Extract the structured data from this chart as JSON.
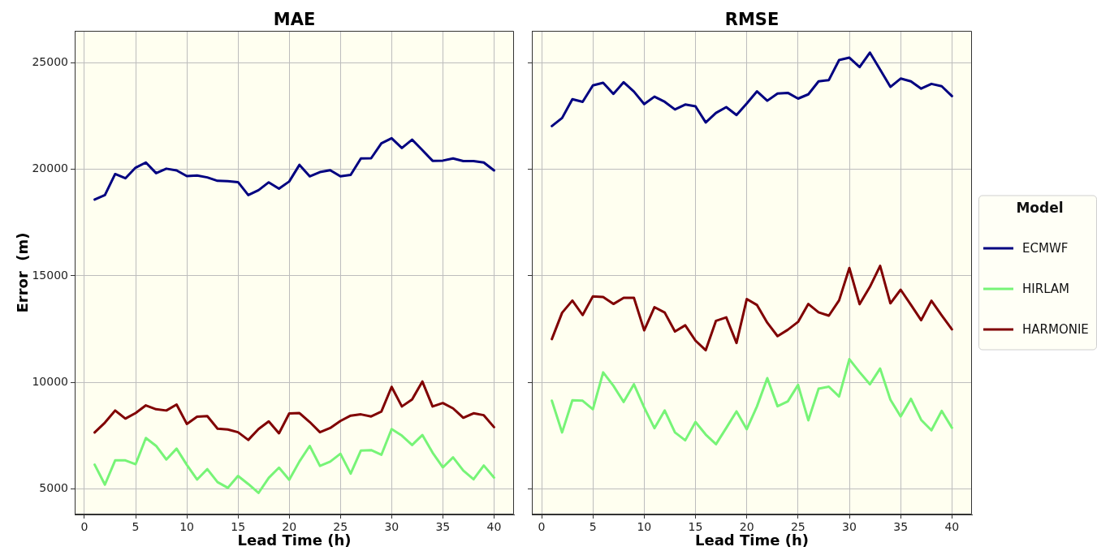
{
  "chart_data": [
    {
      "type": "line",
      "title": "MAE",
      "xlabel": "Lead Time (h)",
      "ylabel": "Error  (m)",
      "x": [
        1,
        2,
        3,
        4,
        5,
        6,
        7,
        8,
        9,
        10,
        11,
        12,
        13,
        14,
        15,
        16,
        17,
        18,
        19,
        20,
        21,
        22,
        23,
        24,
        25,
        26,
        27,
        28,
        29,
        30,
        31,
        32,
        33,
        34,
        35,
        36,
        37,
        38,
        39,
        40
      ],
      "series": [
        {
          "color": "#000080",
          "values": [
            18580,
            18790,
            19780,
            19580,
            20080,
            20320,
            19820,
            20030,
            19950,
            19680,
            19710,
            19620,
            19460,
            19440,
            19400,
            18790,
            19020,
            19390,
            19090,
            19430,
            20210,
            19670,
            19870,
            19960,
            19670,
            19740,
            20510,
            20520,
            21220,
            21460,
            21000,
            21390,
            20900,
            20400,
            20410,
            20510,
            20390,
            20390,
            20320,
            19950
          ]
        },
        {
          "color": "#77f477",
          "values": [
            6140,
            5200,
            6340,
            6340,
            6160,
            7390,
            7020,
            6380,
            6890,
            6130,
            5440,
            5930,
            5320,
            5050,
            5610,
            5230,
            4810,
            5520,
            6000,
            5430,
            6290,
            7020,
            6080,
            6280,
            6650,
            5720,
            6800,
            6820,
            6600,
            7810,
            7500,
            7060,
            7530,
            6700,
            6010,
            6480,
            5860,
            5450,
            6100,
            5530
          ]
        },
        {
          "color": "#800000",
          "values": [
            7650,
            8110,
            8680,
            8300,
            8560,
            8920,
            8740,
            8680,
            8960,
            8050,
            8390,
            8420,
            7830,
            7790,
            7660,
            7300,
            7810,
            8170,
            7610,
            8540,
            8560,
            8140,
            7660,
            7860,
            8190,
            8440,
            8500,
            8400,
            8630,
            9790,
            8870,
            9200,
            10040,
            8870,
            9030,
            8780,
            8340,
            8550,
            8460,
            7900
          ]
        }
      ],
      "xlim": [
        -0.95,
        41.95
      ],
      "ylim": [
        3800,
        26500
      ],
      "xticks": [
        0,
        5,
        10,
        15,
        20,
        25,
        30,
        35,
        40
      ],
      "yticks": [
        5000,
        10000,
        15000,
        20000,
        25000
      ],
      "grid": true
    },
    {
      "type": "line",
      "title": "RMSE",
      "xlabel": "Lead Time (h)",
      "x": [
        1,
        2,
        3,
        4,
        5,
        6,
        7,
        8,
        9,
        10,
        11,
        12,
        13,
        14,
        15,
        16,
        17,
        18,
        19,
        20,
        21,
        22,
        23,
        24,
        25,
        26,
        27,
        28,
        29,
        30,
        31,
        32,
        33,
        34,
        35,
        36,
        37,
        38,
        39,
        40
      ],
      "series": [
        {
          "name": "ECMWF",
          "color": "#000080",
          "values": [
            22030,
            22410,
            23290,
            23170,
            23940,
            24060,
            23540,
            24090,
            23650,
            23060,
            23410,
            23170,
            22810,
            23040,
            22960,
            22200,
            22650,
            22920,
            22550,
            23090,
            23660,
            23220,
            23560,
            23590,
            23320,
            23520,
            24130,
            24190,
            25130,
            25240,
            24800,
            25480,
            24680,
            23870,
            24260,
            24130,
            23790,
            24010,
            23900,
            23440
          ]
        },
        {
          "name": "HIRLAM",
          "color": "#77f477",
          "values": [
            9140,
            7650,
            9160,
            9140,
            8740,
            10470,
            9840,
            9080,
            9910,
            8820,
            7850,
            8680,
            7650,
            7280,
            8140,
            7550,
            7100,
            7860,
            8640,
            7800,
            8880,
            10200,
            8880,
            9110,
            9880,
            8220,
            9700,
            9800,
            9340,
            11090,
            10480,
            9910,
            10650,
            9190,
            8400,
            9230,
            8240,
            7750,
            8660,
            7870
          ]
        },
        {
          "name": "HARMONIE",
          "color": "#800000",
          "values": [
            12030,
            13270,
            13840,
            13160,
            14040,
            14010,
            13680,
            13970,
            13970,
            12440,
            13530,
            13280,
            12390,
            12680,
            11960,
            11510,
            12890,
            13050,
            11850,
            13910,
            13630,
            12800,
            12170,
            12470,
            12840,
            13680,
            13290,
            13130,
            13850,
            15370,
            13670,
            14480,
            15470,
            13710,
            14350,
            13640,
            12920,
            13830,
            13150,
            12490
          ]
        }
      ],
      "xlim": [
        -0.95,
        41.95
      ],
      "ylim": [
        3800,
        26500
      ],
      "xticks": [
        0,
        5,
        10,
        15,
        20,
        25,
        30,
        35,
        40
      ],
      "yticks": [
        5000,
        10000,
        15000,
        20000,
        25000
      ],
      "grid": true,
      "tick_labels": "x",
      "legend": "right",
      "legend_title": "Model"
    }
  ]
}
